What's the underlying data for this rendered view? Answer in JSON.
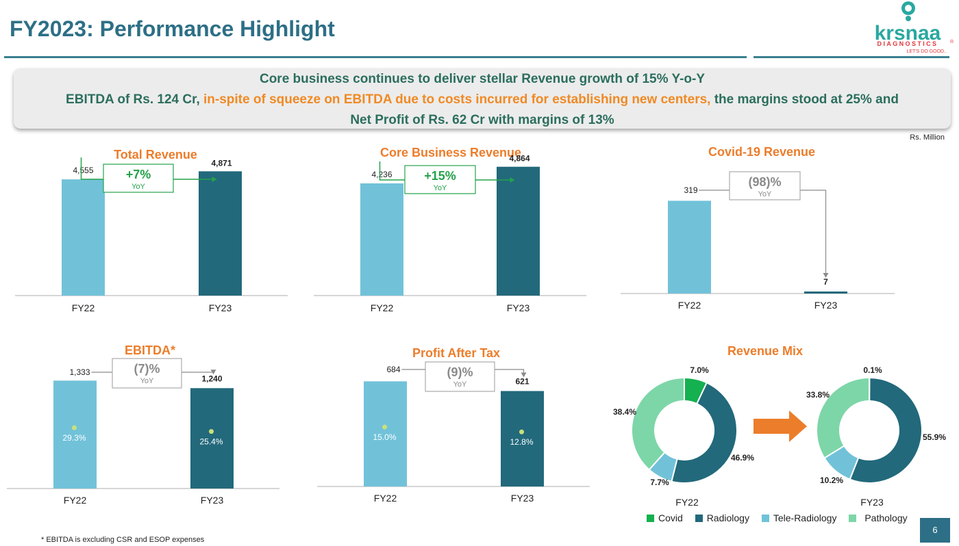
{
  "header": {
    "title": "FY2023: Performance Highlight",
    "logo": {
      "brand": "krsnaa",
      "sub": "DIAGNOSTICS",
      "tagline": "LET'S DO GOOD..",
      "mark": "®"
    }
  },
  "banner": {
    "line1": "Core business continues to deliver stellar Revenue growth of 15% Y-o-Y",
    "line2_part1": "EBITDA of Rs. 124 Cr,",
    "line2_part2": "in-spite of squeeze on EBITDA due to costs incurred for establishing new centers,",
    "line2_part3": "the margins stood at 25% and",
    "line3": "Net Profit of Rs. 62 Cr with margins of 13%"
  },
  "unit_note": "Rs. Million",
  "colors": {
    "fy22": "#71c2d9",
    "fy23": "#22697b",
    "green": "#24a24a",
    "gray": "#8a8a8a",
    "orange": "#ec7d2b",
    "dot": "#c9e07a",
    "covid": "#15b050",
    "radiology": "#22697b",
    "tele": "#71c2d9",
    "pathology": "#7dd6a8"
  },
  "chart_data": [
    {
      "type": "bar",
      "title": "Total Revenue",
      "categories": [
        "FY22",
        "FY23"
      ],
      "values": [
        4555,
        4871
      ],
      "labels": [
        "4,555",
        "4,871"
      ],
      "yoy": "+7%",
      "yoy_sub": "YoY",
      "yoy_dir": "up",
      "ylim": [
        0,
        5900
      ]
    },
    {
      "type": "bar",
      "title": "Core Business Revenue",
      "categories": [
        "FY22",
        "FY23"
      ],
      "values": [
        4236,
        4864
      ],
      "labels": [
        "4,236",
        "4,864"
      ],
      "yoy": "+15%",
      "yoy_sub": "YoY",
      "yoy_dir": "up",
      "ylim": [
        0,
        6200
      ]
    },
    {
      "type": "bar",
      "title": "Covid-19 Revenue",
      "categories": [
        "FY22",
        "FY23"
      ],
      "values": [
        319,
        7
      ],
      "labels": [
        "319",
        "7"
      ],
      "yoy": "(98)%",
      "yoy_sub": "YoY",
      "yoy_dir": "down",
      "ylim": [
        0,
        400
      ]
    },
    {
      "type": "bar",
      "title": "EBITDA*",
      "categories": [
        "FY22",
        "FY23"
      ],
      "values": [
        1333,
        1240
      ],
      "labels": [
        "1,333",
        "1,240"
      ],
      "margins": [
        "29.3%",
        "25.4%"
      ],
      "yoy": "(7)%",
      "yoy_sub": "YoY",
      "yoy_dir": "down",
      "ylim": [
        0,
        1420
      ]
    },
    {
      "type": "bar",
      "title": "Profit After Tax",
      "categories": [
        "FY22",
        "FY23"
      ],
      "values": [
        684,
        621
      ],
      "labels": [
        "684",
        "621"
      ],
      "margins": [
        "15.0%",
        "12.8%"
      ],
      "yoy": "(9)%",
      "yoy_sub": "YoY",
      "yoy_dir": "down",
      "ylim": [
        0,
        730
      ]
    },
    {
      "type": "pie",
      "title": "Revenue Mix",
      "segments": [
        "Covid",
        "Radiology",
        "Tele-Radiology",
        "Pathology"
      ],
      "donuts": [
        {
          "label": "FY22",
          "values": [
            7.0,
            46.9,
            7.7,
            38.4
          ],
          "labels": [
            "7.0%",
            "46.9%",
            "7.7%",
            "38.4%"
          ]
        },
        {
          "label": "FY23",
          "values": [
            0.1,
            55.9,
            10.2,
            33.8
          ],
          "labels": [
            "0.1%",
            "55.9%",
            "10.2%",
            "33.8%"
          ]
        }
      ]
    }
  ],
  "footnote": "* EBITDA is excluding CSR and ESOP expenses",
  "page_number": "6"
}
